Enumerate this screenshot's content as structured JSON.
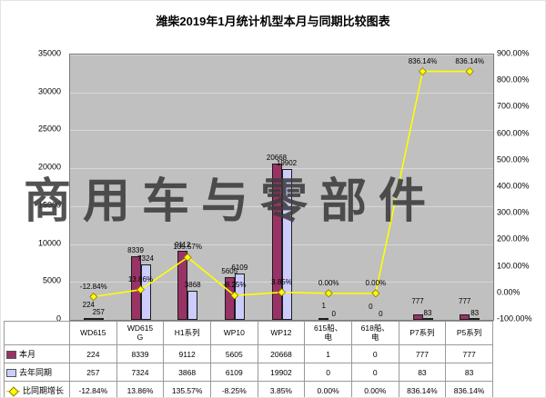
{
  "title": "潍柴2019年1月统计机型本月与同期比较图表",
  "watermark": "商用车与零部件",
  "chart_data": {
    "type": "bar",
    "subtype": "bar+line-combo",
    "categories": [
      "WD615",
      "WD615\nG",
      "H1系列",
      "WP10",
      "WP12",
      "615船、\n电",
      "618船、\n电",
      "P7系列",
      "P5系列"
    ],
    "left_axis": {
      "min": 0,
      "max": 35000,
      "step": 5000
    },
    "right_axis": {
      "min": -100,
      "max": 900,
      "step": 100,
      "format": "percent"
    },
    "grid": true,
    "plot_bg": "#c0c0c0",
    "legend_position": "bottom-table",
    "series": [
      {
        "name": "本月",
        "type": "bar",
        "axis": "left",
        "color": "#993366",
        "values": [
          224,
          8339,
          9112,
          5605,
          20668,
          1,
          0,
          777,
          777
        ]
      },
      {
        "name": "去年同期",
        "type": "bar",
        "axis": "left",
        "color": "#ccccff",
        "values": [
          257,
          7324,
          3868,
          6109,
          19902,
          0,
          0,
          83,
          83
        ]
      },
      {
        "name": "比同期增长",
        "type": "line",
        "axis": "right",
        "color": "#ffff00",
        "values": [
          -12.84,
          13.86,
          135.57,
          -8.25,
          3.85,
          0.0,
          0.0,
          836.14,
          836.14
        ],
        "labels": [
          "-12.84%",
          "13.86%",
          "135.57%",
          "-8.25%",
          "3.85%",
          "0.00%",
          "0.00%",
          "836.14%",
          "836.14%"
        ]
      }
    ]
  }
}
